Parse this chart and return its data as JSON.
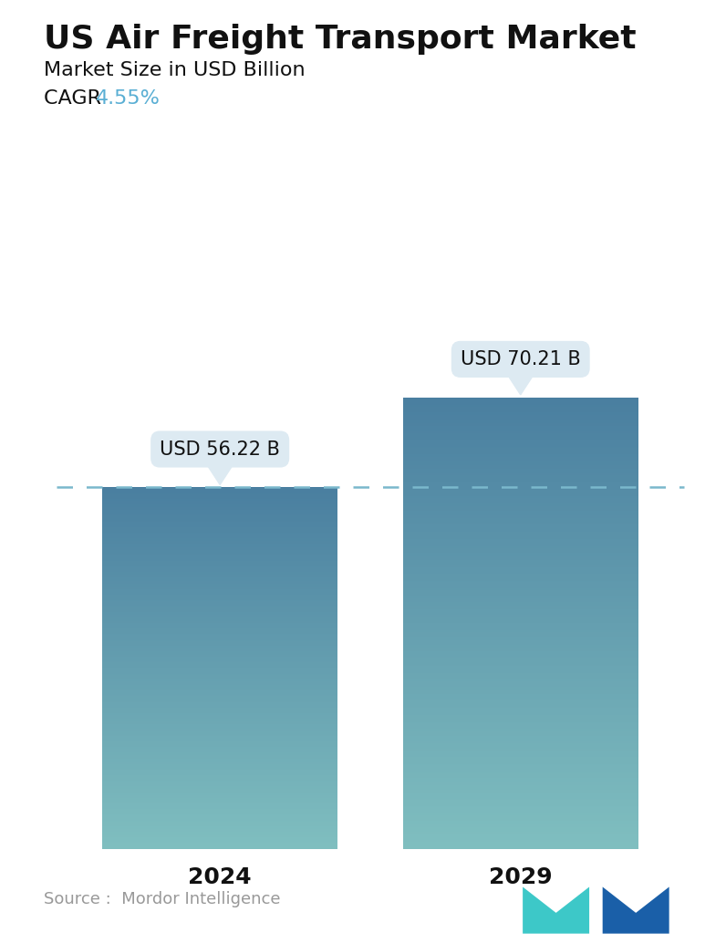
{
  "title": "US Air Freight Transport Market",
  "subtitle": "Market Size in USD Billion",
  "cagr_label": "CAGR ",
  "cagr_value": "4.55%",
  "cagr_color": "#5aafd4",
  "years": [
    "2024",
    "2029"
  ],
  "values": [
    56.22,
    70.21
  ],
  "labels": [
    "USD 56.22 B",
    "USD 70.21 B"
  ],
  "bar_top_color": "#4a7fa0",
  "bar_bottom_color": "#80bfc0",
  "dashed_line_color": "#7ab8cc",
  "dashed_line_y": 56.22,
  "source_text": "Source :  Mordor Intelligence",
  "source_color": "#999999",
  "background_color": "#ffffff",
  "title_fontsize": 26,
  "subtitle_fontsize": 16,
  "cagr_fontsize": 16,
  "label_fontsize": 15,
  "year_fontsize": 18,
  "source_fontsize": 13,
  "ylim": [
    0,
    88
  ],
  "bar_positions": [
    0.27,
    0.73
  ],
  "bar_width": 0.36,
  "bubble_bg": "#ddeaf2",
  "logo_teal": "#3dc8c8",
  "logo_blue": "#1a5fa8"
}
